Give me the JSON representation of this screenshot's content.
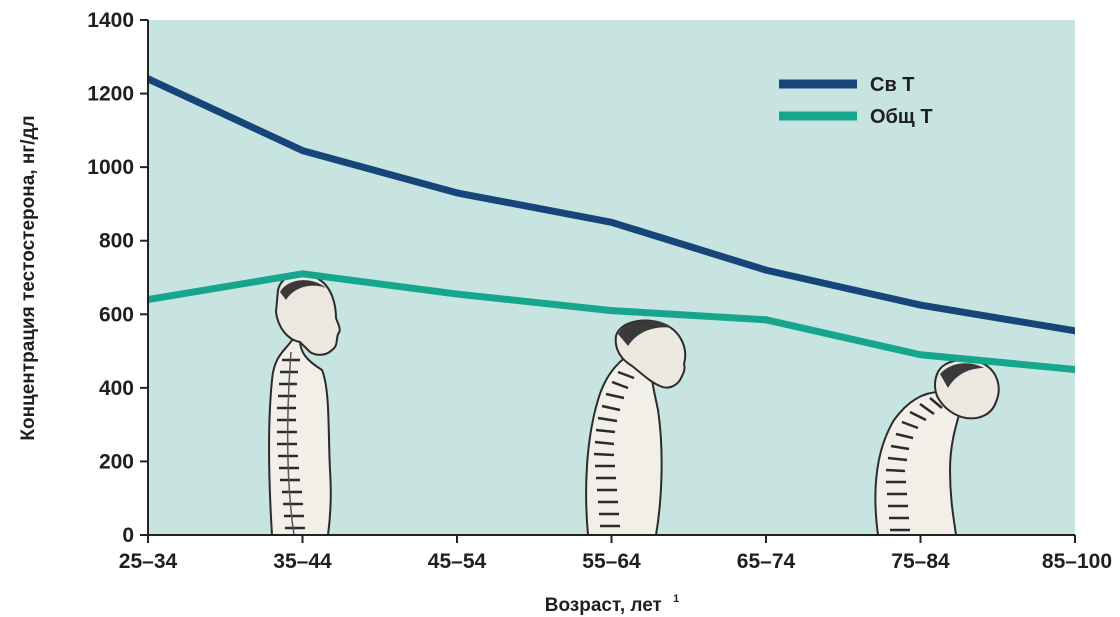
{
  "chart_data": {
    "type": "line",
    "categories": [
      "25–34",
      "35–44",
      "45–54",
      "55–64",
      "65–74",
      "75–84",
      "85–100"
    ],
    "series": [
      {
        "name": "Св Т",
        "color": "#17457a",
        "values": [
          1240,
          1045,
          930,
          850,
          720,
          625,
          555
        ]
      },
      {
        "name": "Общ Т",
        "color": "#16a68e",
        "values": [
          640,
          710,
          655,
          610,
          585,
          490,
          450
        ]
      }
    ],
    "xlabel": "Возраст, лет",
    "xlabel_superscript": "1",
    "ylabel": "Концентрация тестостерона, нг/дл",
    "ylim": [
      0,
      1400
    ],
    "yticks": [
      0,
      200,
      400,
      600,
      800,
      1000,
      1200,
      1400
    ],
    "grid": false,
    "legend_position": "top-right",
    "plot_background": "#c7e4e1",
    "illustrations": [
      "upright-figure-spine",
      "stooped-figure-spine",
      "hunched-figure-spine"
    ]
  }
}
